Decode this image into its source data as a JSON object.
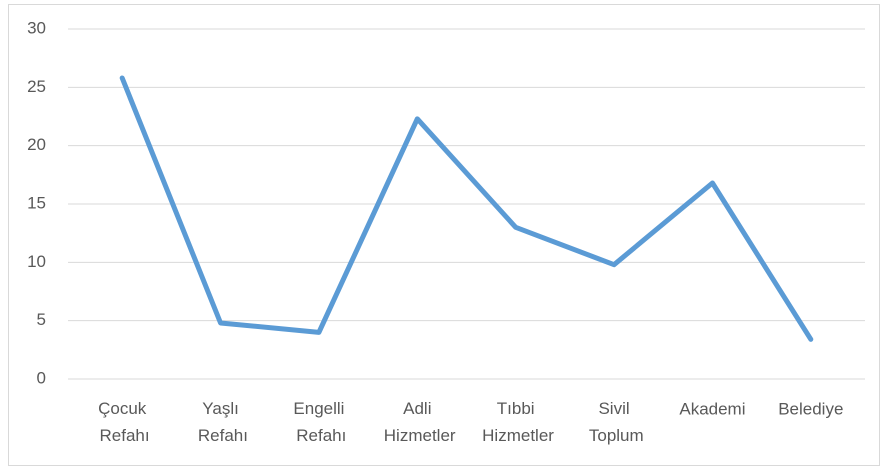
{
  "chart_data": {
    "type": "line",
    "categories": [
      "Çocuk Refahı",
      "Yaşlı Refahı",
      "Engelli Refahı",
      "Adli Hizmetler",
      "Tıbbi Hizmetler",
      "Sivil Toplum",
      "Akademi",
      "Belediye"
    ],
    "series": [
      {
        "name": null,
        "color": "#5b9bd5",
        "values": [
          25.8,
          4.8,
          4.0,
          22.3,
          13.0,
          9.8,
          16.8,
          3.4
        ]
      }
    ],
    "ylim": [
      0,
      30
    ],
    "yticks": [
      0,
      5,
      10,
      15,
      20,
      25,
      30
    ],
    "grid": true
  }
}
